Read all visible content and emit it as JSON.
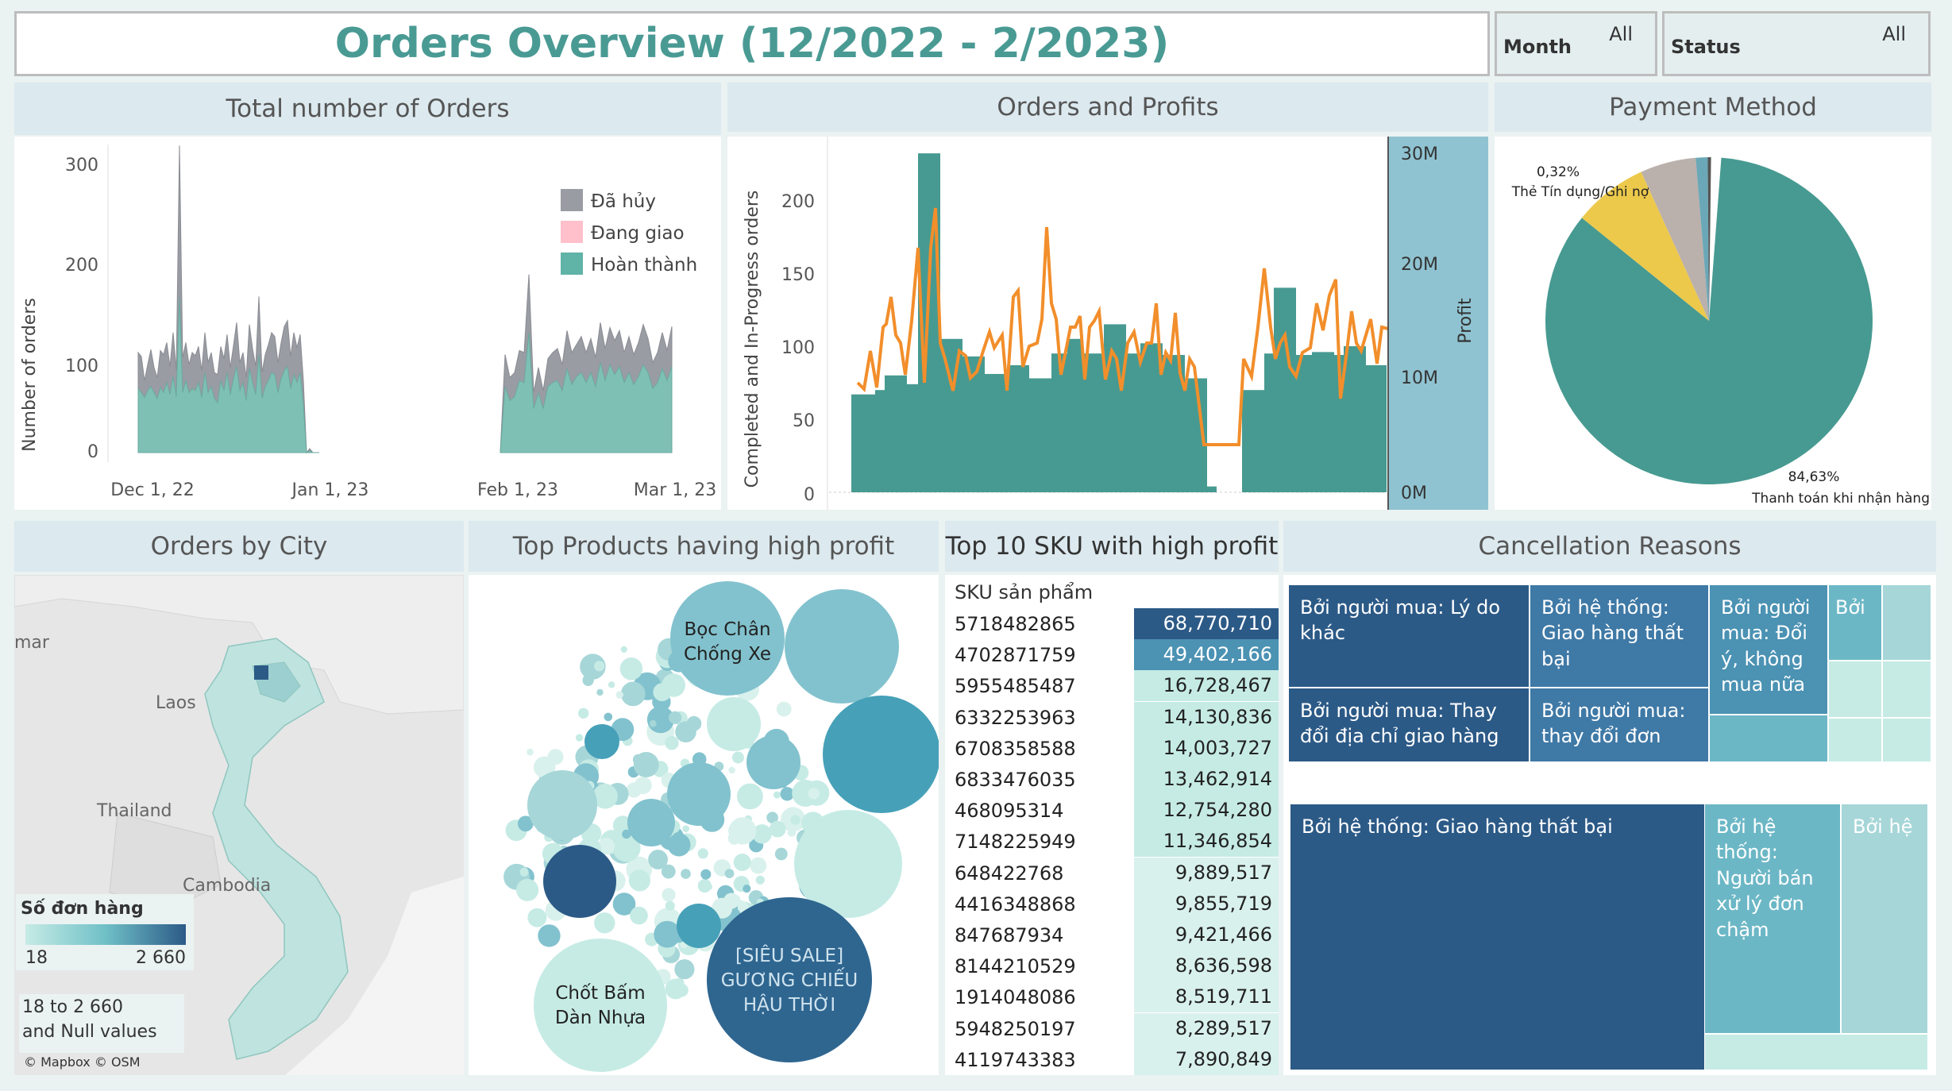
{
  "header": {
    "title": "Orders Overview (12/2022 - 2/2023)"
  },
  "filters": [
    {
      "label": "Month",
      "value": "All"
    },
    {
      "label": "Status",
      "value": "All"
    }
  ],
  "panels": {
    "total_orders": "Total number of Orders",
    "orders_profits": "Orders and Profits",
    "payment": "Payment Method",
    "city": "Orders by City",
    "top_products": "Top Products having high profit",
    "top_sku": "Top 10 SKU with high profit",
    "cancellation": "Cancellation Reasons"
  },
  "colors": {
    "teal": "#5fb3a7",
    "teal_dark": "#479a91",
    "grey": "#9a9ca3",
    "orange": "#f28e2b",
    "profit_axis": "#8fc3d1",
    "yellow": "#ecc94b",
    "taupe": "#bab0ac",
    "navy": "#2c5a87"
  },
  "total_orders_chart": {
    "ylabel": "Number of orders",
    "yticks": [
      "300",
      "200",
      "100",
      "0"
    ],
    "xticks": [
      "Dec 1, 22",
      "Jan 1, 23",
      "Feb 1, 23",
      "Mar 1, 23"
    ],
    "legend": [
      "Đã hủy",
      "Đang giao",
      "Hoàn thành"
    ]
  },
  "orders_profits_chart": {
    "ylabel": "Completed and In-Progress orders",
    "y2label": "Profit",
    "yticks": [
      "200",
      "150",
      "100",
      "50",
      "0"
    ],
    "y2ticks": [
      "30M",
      "20M",
      "10M",
      "0M"
    ]
  },
  "payment_chart": {
    "small_label": "0,32%",
    "small_name": "Thẻ Tín dụng/Ghi nợ",
    "big_label": "84,63%",
    "big_name": "Thanh toán khi nhận hàng"
  },
  "map": {
    "labels": [
      "mar",
      "Laos",
      "Thailand",
      "Cambodia"
    ],
    "legend_title": "Số đơn hàng",
    "legend_min": "18",
    "legend_max": "2 660",
    "range_note": "18 to 2 660\nand Null values",
    "credit": "© Mapbox © OSM"
  },
  "bubbles": {
    "labels": [
      "Bọc Chân\nChống Xe",
      "[SIÊU SALE]\nGƯƠNG CHIẾU\nHẬU THỜI",
      "Chốt Bấm\nDàn Nhựa"
    ]
  },
  "sku_table": {
    "header": "SKU sản phẩm",
    "rows": [
      {
        "sku": "5718482865",
        "profit": "68,770,710"
      },
      {
        "sku": "4702871759",
        "profit": "49,402,166"
      },
      {
        "sku": "5955485487",
        "profit": "16,728,467"
      },
      {
        "sku": "6332253963",
        "profit": "14,130,836"
      },
      {
        "sku": "6708358588",
        "profit": "14,003,727"
      },
      {
        "sku": "6833476035",
        "profit": "13,462,914"
      },
      {
        "sku": "468095314",
        "profit": "12,754,280"
      },
      {
        "sku": "7148225949",
        "profit": "11,346,854"
      },
      {
        "sku": "648422768",
        "profit": "9,889,517"
      },
      {
        "sku": "4416348868",
        "profit": "9,855,719"
      },
      {
        "sku": "847687934",
        "profit": "9,421,466"
      },
      {
        "sku": "8144210529",
        "profit": "8,636,598"
      },
      {
        "sku": "1914048086",
        "profit": "8,519,711"
      },
      {
        "sku": "5948250197",
        "profit": "8,289,517"
      },
      {
        "sku": "4119743383",
        "profit": "7,890,849"
      }
    ]
  },
  "cancellation": {
    "t1": "Bởi người mua: Lý do khác",
    "t2": "Bởi hệ thống: Giao hàng thất bại",
    "t3": "Bởi người mua: Đổi ý, không mua nữa",
    "t4": "Bởi",
    "t5": "Bởi người mua: Thay đổi địa chỉ giao hàng",
    "t6": "Bởi người mua: thay đổi đơn",
    "t7": "Bởi hệ thống: Giao hàng thất bại",
    "t8": "Bởi hệ thống: Người bán xử lý đơn chậm",
    "t9": "Bởi hệ"
  }
}
